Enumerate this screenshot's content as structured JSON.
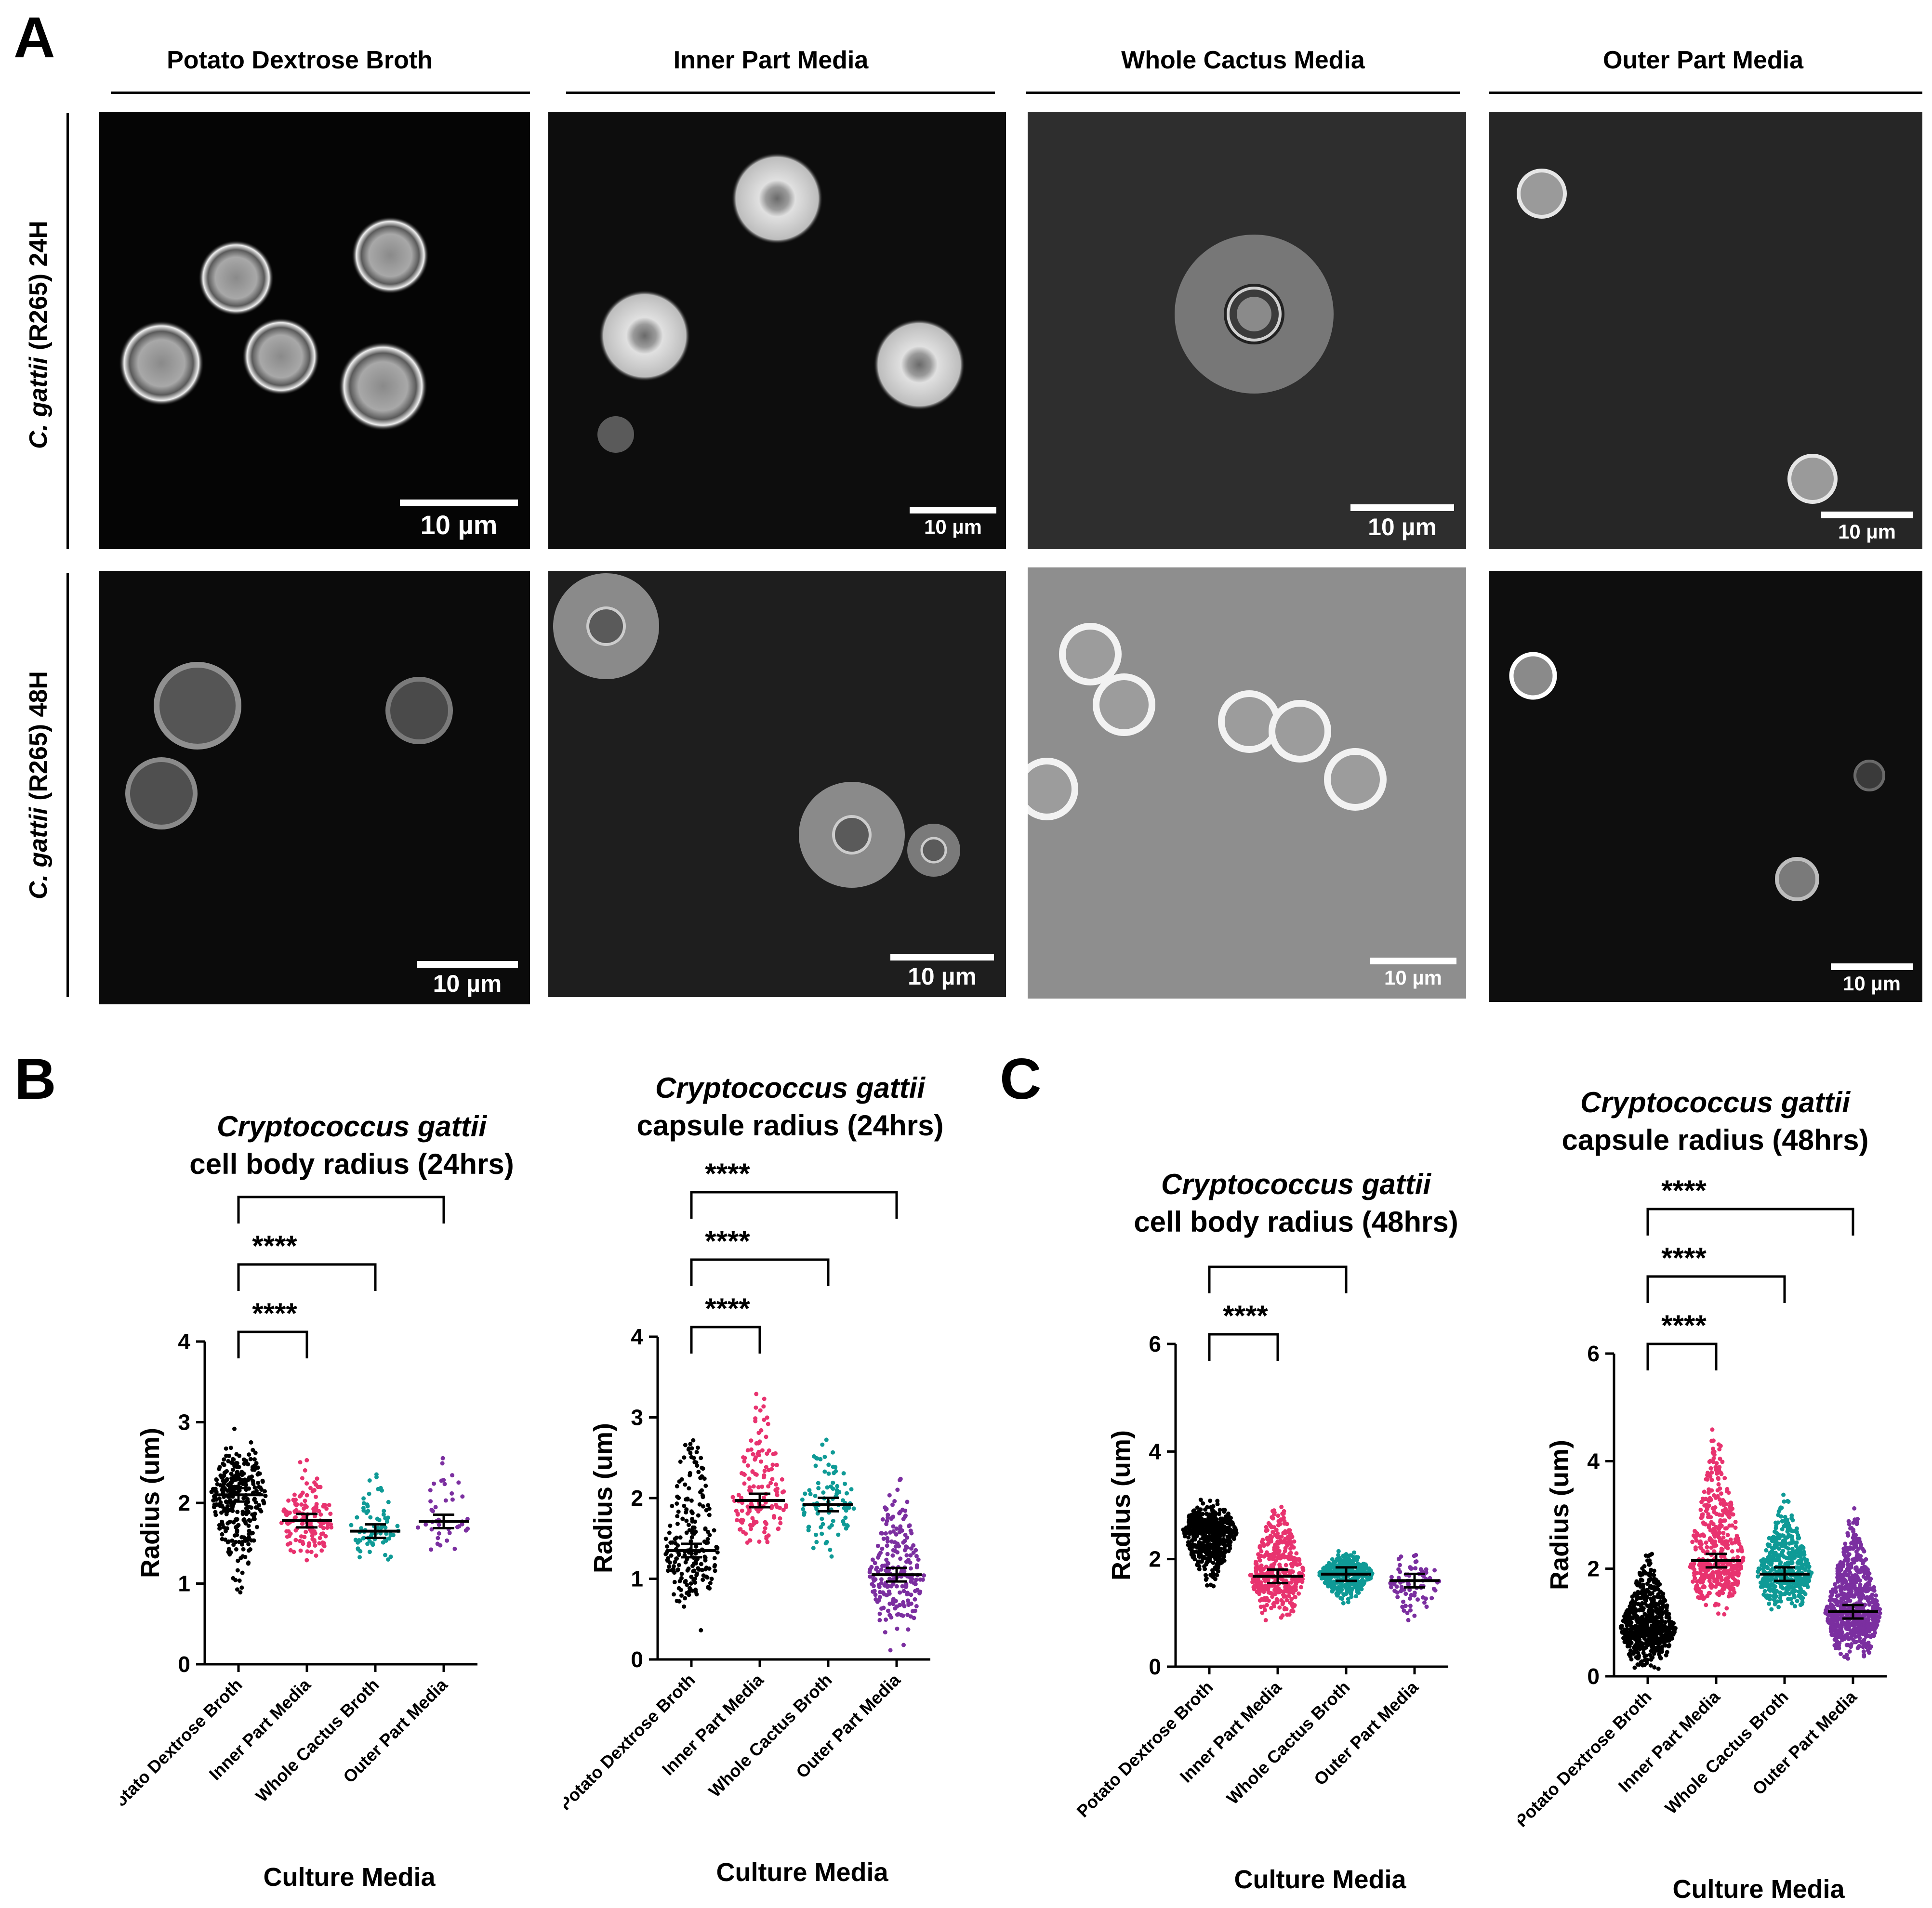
{
  "panel_a": {
    "letter": "A",
    "columns": [
      "Potato Dextrose Broth",
      "Inner Part Media",
      "Whole Cactus Media",
      "Outer Part Media"
    ],
    "rows": [
      {
        "species": "C. gattii",
        "rest": "(R265) 24H"
      },
      {
        "species": "C. gattii",
        "rest": "(R265) 48H"
      }
    ],
    "scale_label": "10 µm"
  },
  "panel_b": {
    "letter": "B"
  },
  "panel_c": {
    "letter": "C"
  },
  "chart_data": [
    {
      "type": "scatter",
      "title_species": "Cryptococcus gattii",
      "title_text": "cell body radius (24hrs)",
      "xlabel": "Culture Media",
      "ylabel": "Radius (um)",
      "categories": [
        "Potato Dextrose Broth",
        "Inner Part Media",
        "Whole Cactus Broth",
        "Outer Part Media"
      ],
      "ylim": [
        0,
        4
      ],
      "yticks": [
        0,
        1,
        2,
        3,
        4
      ],
      "means": [
        2.1,
        1.78,
        1.65,
        1.77
      ],
      "ranges": [
        [
          0.8,
          3.0
        ],
        [
          1.2,
          2.8
        ],
        [
          1.15,
          2.55
        ],
        [
          1.25,
          3.0
        ]
      ],
      "counts": [
        300,
        150,
        70,
        40
      ],
      "colors": [
        "#000000",
        "#e8336f",
        "#0f9a96",
        "#7b2fa0"
      ],
      "comparisons": [
        {
          "from": 0,
          "to": 1,
          "label": "****"
        },
        {
          "from": 0,
          "to": 2,
          "label": "****"
        },
        {
          "from": 0,
          "to": 3,
          "label": "****"
        }
      ]
    },
    {
      "type": "scatter",
      "title_species": "Cryptococcus gattii",
      "title_text": "capsule radius (24hrs)",
      "xlabel": "Culture Media",
      "ylabel": "Radius (um)",
      "categories": [
        "Potato Dextrose Broth",
        "Inner Part Media",
        "Whole Cactus Broth",
        "Outer Part Media"
      ],
      "ylim": [
        0,
        4
      ],
      "yticks": [
        0,
        1,
        2,
        3,
        4
      ],
      "means": [
        1.35,
        1.97,
        1.92,
        1.05
      ],
      "ranges": [
        [
          0.3,
          3.3
        ],
        [
          1.15,
          3.5
        ],
        [
          1.15,
          3.2
        ],
        [
          0.05,
          2.5
        ]
      ],
      "counts": [
        200,
        140,
        90,
        220
      ],
      "colors": [
        "#000000",
        "#e8336f",
        "#0f9a96",
        "#7b2fa0"
      ],
      "comparisons": [
        {
          "from": 0,
          "to": 1,
          "label": "****"
        },
        {
          "from": 0,
          "to": 2,
          "label": "****"
        },
        {
          "from": 0,
          "to": 3,
          "label": "****"
        }
      ]
    },
    {
      "type": "scatter",
      "title_species": "Cryptococcus gattii",
      "title_text": "cell body radius (48hrs)",
      "xlabel": "Culture Media",
      "ylabel": "Radius (um)",
      "categories": [
        "Potato Dextrose Broth",
        "Inner Part Media",
        "Whole Cactus Broth",
        "Outer Part Media"
      ],
      "ylim": [
        0,
        6
      ],
      "yticks": [
        0,
        2,
        4,
        6
      ],
      "means": [
        2.5,
        1.68,
        1.72,
        1.6
      ],
      "ranges": [
        [
          1.3,
          3.2
        ],
        [
          0.8,
          3.4
        ],
        [
          1.1,
          2.2
        ],
        [
          0.7,
          2.3
        ]
      ],
      "counts": [
        500,
        400,
        350,
        80
      ],
      "colors": [
        "#000000",
        "#e8336f",
        "#0f9a96",
        "#7b2fa0"
      ],
      "comparisons": [
        {
          "from": 0,
          "to": 1,
          "label": "****"
        },
        {
          "from": 0,
          "to": 2,
          "label": "****"
        },
        {
          "from": 0,
          "to": 3,
          "label": "****"
        }
      ]
    },
    {
      "type": "scatter",
      "title_species": "Cryptococcus gattii",
      "title_text": "capsule radius (48hrs)",
      "xlabel": "Culture Media",
      "ylabel": "Radius (um)",
      "categories": [
        "Potato Dextrose Broth",
        "Inner Part Media",
        "Whole Cactus Broth",
        "Outer Part Media"
      ],
      "ylim": [
        0,
        6
      ],
      "yticks": [
        0,
        2,
        4,
        6
      ],
      "means": [
        0.88,
        2.15,
        1.9,
        1.2
      ],
      "ranges": [
        [
          0.0,
          2.5
        ],
        [
          1.0,
          5.0
        ],
        [
          1.1,
          3.6
        ],
        [
          0.2,
          3.3
        ]
      ],
      "counts": [
        550,
        450,
        450,
        700
      ],
      "colors": [
        "#000000",
        "#e8336f",
        "#0f9a96",
        "#7b2fa0"
      ],
      "comparisons": [
        {
          "from": 0,
          "to": 1,
          "label": "****"
        },
        {
          "from": 0,
          "to": 2,
          "label": "****"
        },
        {
          "from": 0,
          "to": 3,
          "label": "****"
        }
      ]
    }
  ]
}
